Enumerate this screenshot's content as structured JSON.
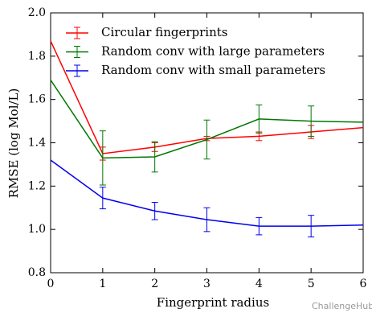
{
  "chart_data": {
    "type": "line",
    "x_label": "Fingerprint radius",
    "y_label": "RMSE (log Mol/L)",
    "x": [
      0,
      1,
      2,
      3,
      4,
      5,
      6
    ],
    "series": [
      {
        "name": "Circular fingerprints",
        "color": "#ff0000",
        "values": [
          1.87,
          1.35,
          1.38,
          1.42,
          1.43,
          1.45,
          1.47
        ],
        "errors": [
          null,
          0.03,
          0.02,
          0.01,
          0.02,
          0.03,
          null
        ]
      },
      {
        "name": "Random conv with large parameters",
        "color": "#007700",
        "values": [
          1.69,
          1.33,
          1.335,
          1.415,
          1.51,
          1.5,
          1.495
        ],
        "errors": [
          null,
          0.125,
          0.07,
          0.09,
          0.065,
          0.07,
          null
        ]
      },
      {
        "name": "Random conv with small parameters",
        "color": "#0000ee",
        "values": [
          1.32,
          1.145,
          1.085,
          1.045,
          1.015,
          1.015,
          1.02
        ],
        "errors": [
          null,
          0.05,
          0.04,
          0.055,
          0.04,
          0.05,
          null
        ]
      }
    ],
    "xlim": [
      0,
      6
    ],
    "xticks": [
      0,
      1,
      2,
      3,
      4,
      5,
      6
    ],
    "ylim": [
      0.8,
      2.0
    ],
    "yticks": [
      0.8,
      {
        "value": 1.0,
        "label": "1.0"
      },
      1.2,
      1.4,
      1.6,
      1.8,
      {
        "value": 2.0,
        "label": "2.0"
      }
    ],
    "legend": "upper right",
    "watermark": "ChallengeHub"
  }
}
